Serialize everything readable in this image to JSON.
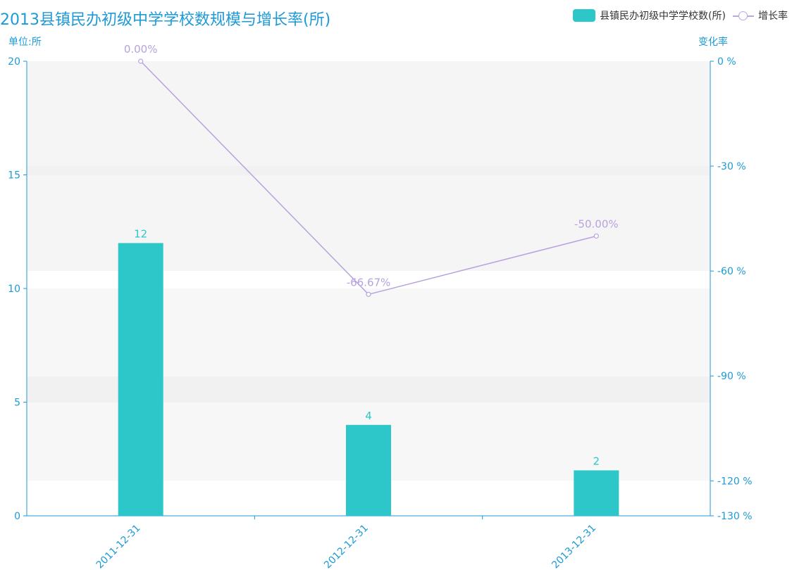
{
  "chart_data": {
    "type": "bar",
    "title": "2013县镇民办初级中学学校数规模与增长率(所)",
    "categories": [
      "2011-12-31",
      "2012-12-31",
      "2013-12-31"
    ],
    "series": [
      {
        "name": "县镇民办初级中学学校数(所)",
        "type": "bar",
        "axis": "left",
        "color": "#2ec7c9",
        "values": [
          12,
          4,
          2
        ],
        "labels": [
          "12",
          "4",
          "2"
        ]
      },
      {
        "name": "增长率",
        "type": "line",
        "axis": "right",
        "color": "#b6a2de",
        "values": [
          0.0,
          -66.67,
          -50.0
        ],
        "labels": [
          "0.00%",
          "-66.67%",
          "-50.00%"
        ]
      }
    ],
    "y_left": {
      "unit_label": "单位:所",
      "min": 0,
      "max": 20,
      "ticks": [
        0,
        5,
        10,
        15,
        20
      ],
      "tick_labels": [
        "0",
        "5",
        "10",
        "15",
        "20"
      ]
    },
    "y_right": {
      "unit_label": "变化率",
      "min": -130,
      "max": 0,
      "ticks": [
        0,
        -30,
        -60,
        -90,
        -120,
        -130
      ],
      "tick_labels": [
        "0 %",
        "-30 %",
        "-60 %",
        "-90 %",
        "-120 %",
        "-130 %"
      ]
    },
    "legend_position": "top-right",
    "axis_color": "#1e9ad6",
    "background_band_color": "#f7f7f7"
  }
}
